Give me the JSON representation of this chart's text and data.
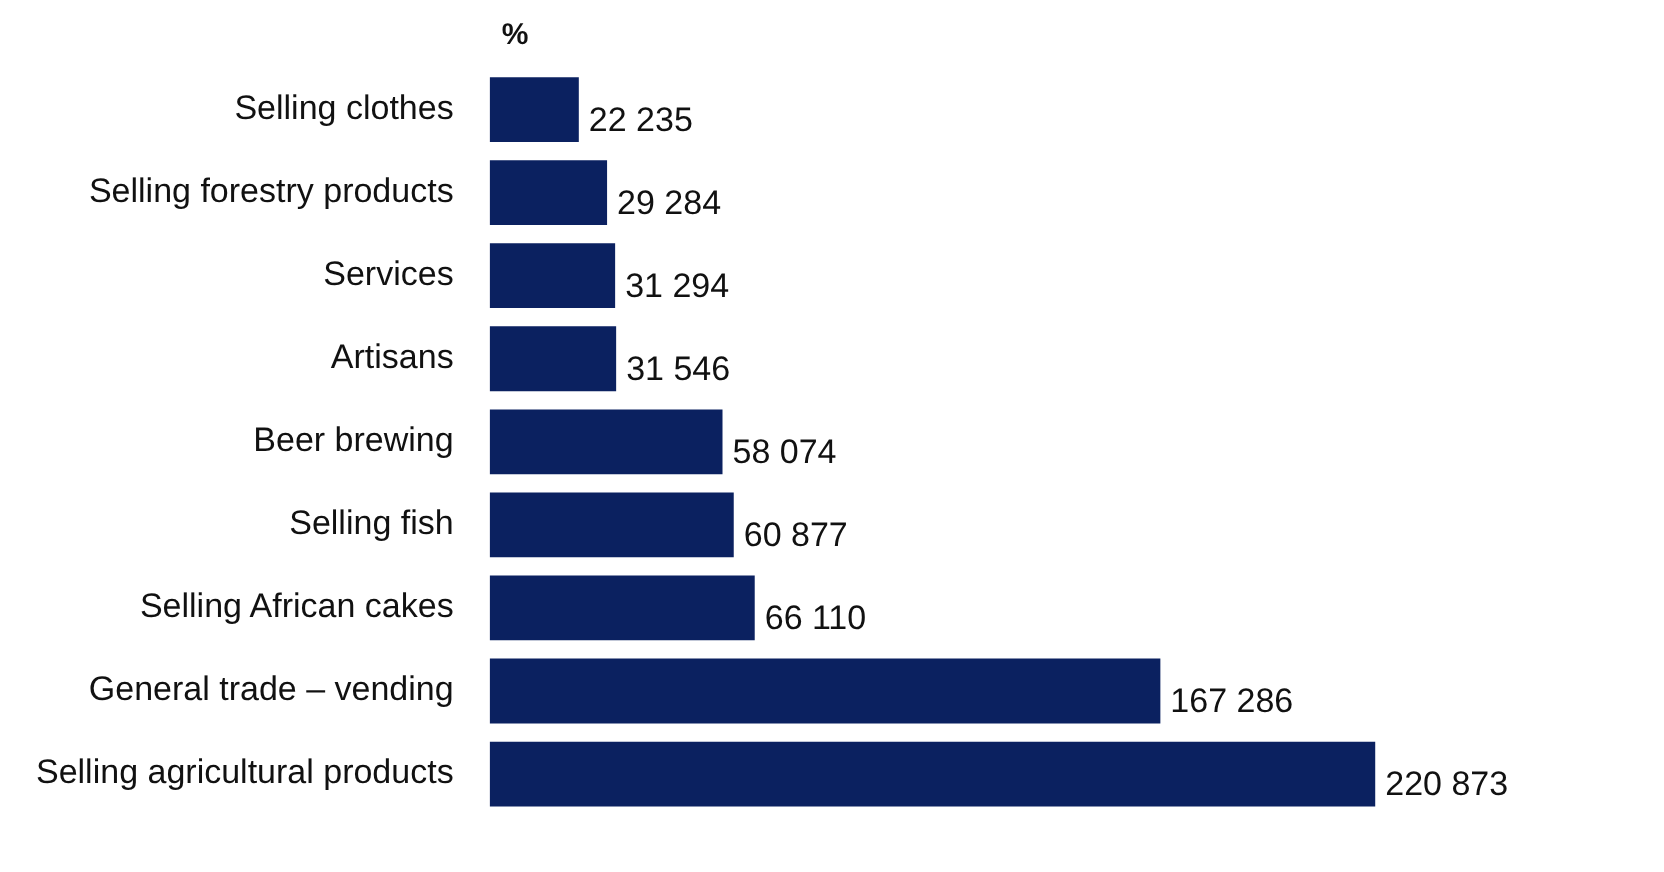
{
  "chart_data": {
    "type": "bar",
    "orientation": "horizontal",
    "categories": [
      "Selling clothes",
      "Selling forestry products",
      "Services",
      "Artisans",
      "Beer brewing",
      "Selling fish",
      "Selling African cakes",
      "General trade – vending",
      "Selling agricultural products"
    ],
    "values": [
      22235,
      29284,
      31294,
      31546,
      58074,
      60877,
      66110,
      167286,
      220873
    ],
    "value_labels": [
      "22 235",
      "29 284",
      "31 294",
      "31 546",
      "58 074",
      "60 877",
      "66 110",
      "167 286",
      "220 873"
    ],
    "color": "#0b2160",
    "annotations": [
      "%"
    ]
  }
}
